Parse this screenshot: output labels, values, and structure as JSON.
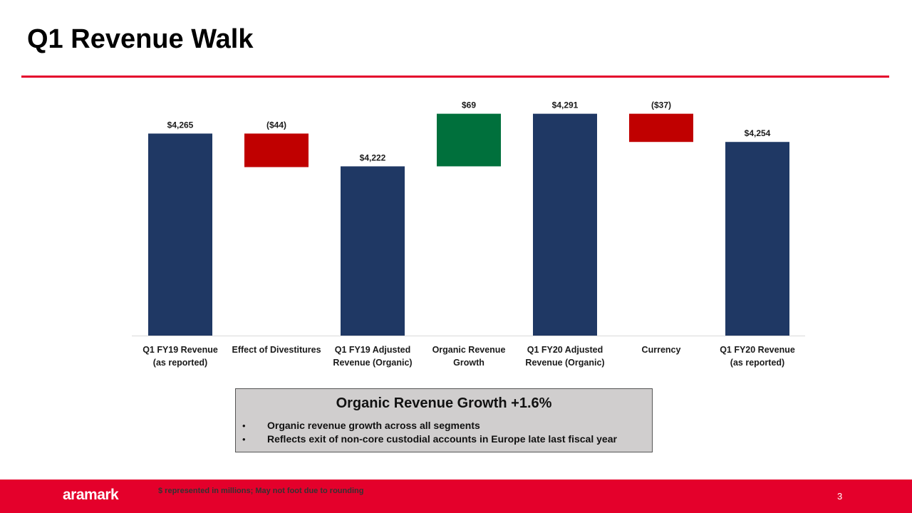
{
  "header": {
    "title": "Q1 Revenue Walk"
  },
  "chart_data": {
    "type": "waterfall",
    "categories": [
      "Q1 FY19 Revenue\n(as reported)",
      "Effect of Divestitures",
      "Q1 FY19 Adjusted\nRevenue (Organic)",
      "Organic Revenue\nGrowth",
      "Q1 FY20 Adjusted\nRevenue (Organic)",
      "Currency",
      "Q1 FY20 Revenue\n(as reported)"
    ],
    "values": [
      4265,
      -44,
      4222,
      69,
      4291,
      -37,
      4254
    ],
    "value_labels": [
      "$4,265",
      "($44)",
      "$4,222",
      "$69",
      "$4,291",
      "($37)",
      "$4,254"
    ],
    "measures": [
      "total",
      "relative",
      "total",
      "relative",
      "total",
      "relative",
      "total"
    ],
    "colors": {
      "total": "#1f3864",
      "increase": "#00703c",
      "decrease": "#c00000"
    },
    "ylim": [
      4000,
      4300
    ]
  },
  "callout": {
    "title": "Organic Revenue Growth +1.6%",
    "bullets": [
      "Organic revenue growth across all segments",
      "Reflects exit of non-core custodial accounts in Europe late last fiscal year"
    ]
  },
  "footer": {
    "logo": "aramark",
    "note": "$ represented in millions; May not foot due to rounding",
    "page": "3"
  }
}
